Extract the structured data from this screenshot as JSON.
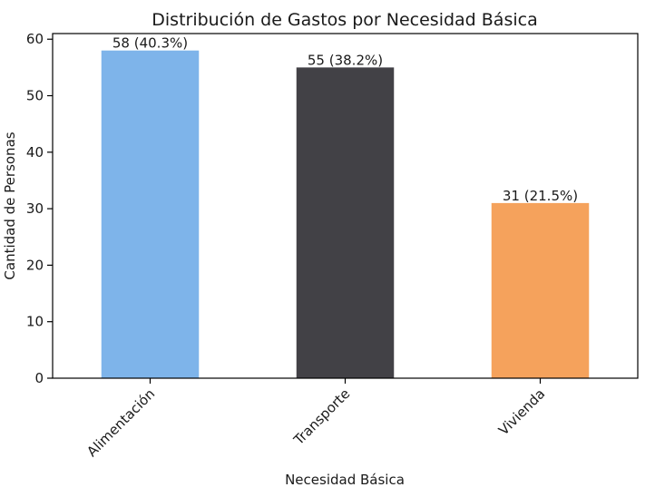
{
  "chart_data": {
    "type": "bar",
    "title": "Distribución de Gastos por Necesidad Básica",
    "xlabel": "Necesidad Básica",
    "ylabel": "Cantidad de Personas",
    "categories": [
      "Alimentación",
      "Transporte",
      "Vivienda"
    ],
    "values": [
      58,
      55,
      31
    ],
    "data_labels": [
      "58 (40.3%)",
      "55 (38.2%)",
      "31 (21.5%)"
    ],
    "colors": [
      "#7EB4EA",
      "#424146",
      "#F5A25C"
    ],
    "ylim": [
      0,
      61
    ],
    "yticks": [
      0,
      10,
      20,
      30,
      40,
      50,
      60
    ],
    "grid": false,
    "legend": "none"
  }
}
